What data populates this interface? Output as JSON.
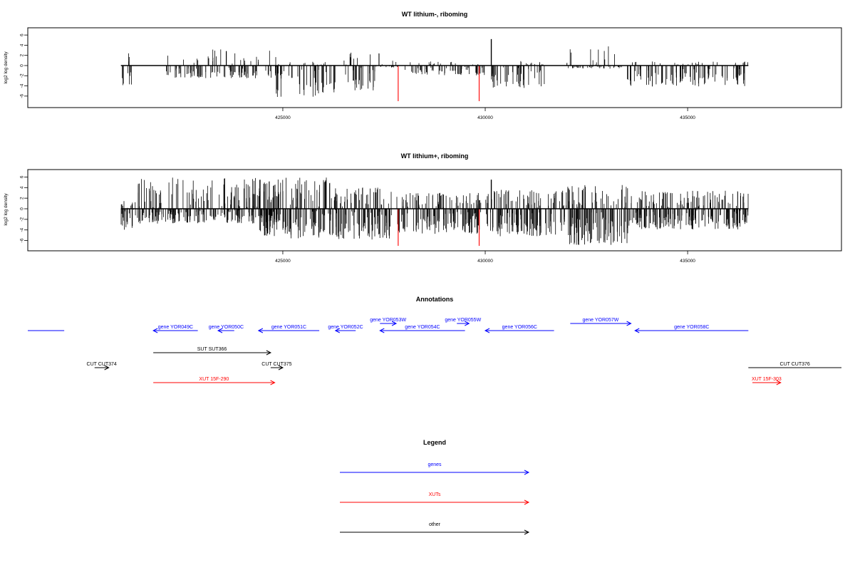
{
  "colors": {
    "genes": "#0000ff",
    "xuts": "#ff0000",
    "other": "#000000",
    "highlight": "#ff0000"
  },
  "chart_data": [
    {
      "type": "bar",
      "title": "WT lithium-, riboming",
      "ylabel": "log2 log density",
      "xlim": [
        418700,
        438800
      ],
      "ylim": [
        -7.5,
        7
      ],
      "x_ticks": [
        425000,
        430000,
        435000
      ],
      "x_tick_labels": [
        "425000",
        "430000",
        "435000"
      ],
      "y_ticks": [
        6,
        4,
        2,
        0,
        -2,
        -4,
        -6
      ],
      "y_tick_labels": [
        "6",
        "4",
        "2",
        "0",
        "-2",
        "-4",
        "-6"
      ],
      "baseline": {
        "x_start": 421000,
        "x_end": 436500
      },
      "highlight_bars": [
        {
          "x": 427850,
          "value": -7.0
        },
        {
          "x": 429850,
          "value": -7.0
        }
      ],
      "density_regions": [
        {
          "x_start": 421000,
          "x_end": 421300,
          "max": 2.4,
          "min": -4.2
        },
        {
          "x_start": 422100,
          "x_end": 424900,
          "max": 3.3,
          "min": -2.5
        },
        {
          "x_start": 424800,
          "x_end": 426300,
          "max": 0.8,
          "min": -6.2
        },
        {
          "x_start": 426500,
          "x_end": 427300,
          "max": 3.2,
          "min": -5.0
        },
        {
          "x_start": 427300,
          "x_end": 427850,
          "max": 2.8,
          "min": -0.4
        },
        {
          "x_start": 428000,
          "x_end": 430000,
          "max": 0.8,
          "min": -1.9
        },
        {
          "x_start": 430150,
          "x_end": 431500,
          "max": 0.9,
          "min": -4.6
        },
        {
          "x_start": 432000,
          "x_end": 433400,
          "max": 4.2,
          "min": -0.6
        },
        {
          "x_start": 433500,
          "x_end": 436500,
          "max": 0.8,
          "min": -4.2
        }
      ],
      "spikes": [
        {
          "x": 430150,
          "value": 5.2
        }
      ]
    },
    {
      "type": "bar",
      "title": "WT lithium+, riboming",
      "ylabel": "log2 log density",
      "xlim": [
        418700,
        438800
      ],
      "ylim": [
        -7.5,
        7
      ],
      "x_ticks": [
        425000,
        430000,
        435000
      ],
      "x_tick_labels": [
        "425000",
        "430000",
        "435000"
      ],
      "y_ticks": [
        6,
        4,
        2,
        0,
        -2,
        -4,
        -6
      ],
      "y_tick_labels": [
        "6",
        "4",
        "2",
        "0",
        "-2",
        "-4",
        "-6"
      ],
      "baseline": {
        "x_start": 421000,
        "x_end": 436500
      },
      "highlight_bars": [
        {
          "x": 427850,
          "value": -7.0
        },
        {
          "x": 429850,
          "value": -7.0
        }
      ],
      "density_regions": [
        {
          "x_start": 421000,
          "x_end": 421300,
          "max": 1.5,
          "min": -4.2
        },
        {
          "x_start": 421300,
          "x_end": 424900,
          "max": 5.9,
          "min": -2.8
        },
        {
          "x_start": 424400,
          "x_end": 426200,
          "max": 6.2,
          "min": -5.6
        },
        {
          "x_start": 426200,
          "x_end": 427700,
          "max": 4.0,
          "min": -5.8
        },
        {
          "x_start": 427800,
          "x_end": 429900,
          "max": 3.0,
          "min": -4.8
        },
        {
          "x_start": 430000,
          "x_end": 432000,
          "max": 3.6,
          "min": -5.2
        },
        {
          "x_start": 432000,
          "x_end": 433600,
          "max": 4.5,
          "min": -7.0
        },
        {
          "x_start": 433600,
          "x_end": 436500,
          "max": 3.4,
          "min": -3.9
        }
      ],
      "spikes": [
        {
          "x": 430150,
          "value": 5.5
        }
      ]
    }
  ],
  "annotations": {
    "title": "Annotations",
    "xlim": [
      418700,
      438800
    ],
    "features": [
      {
        "label": "",
        "kind": "gene",
        "x_start": 418700,
        "x_end": 419600,
        "row": 1,
        "direction": "none"
      },
      {
        "label": "gene YOR049C",
        "kind": "gene",
        "x_start": 421800,
        "x_end": 422900,
        "row": 1,
        "direction": "left"
      },
      {
        "label": "gene YOR050C",
        "kind": "gene",
        "x_start": 423400,
        "x_end": 423800,
        "row": 1,
        "direction": "left"
      },
      {
        "label": "gene YOR051C",
        "kind": "gene",
        "x_start": 424400,
        "x_end": 425900,
        "row": 1,
        "direction": "left"
      },
      {
        "label": "gene YOR052C",
        "kind": "gene",
        "x_start": 426300,
        "x_end": 426800,
        "row": 1,
        "direction": "left"
      },
      {
        "label": "gene YOR053W",
        "kind": "gene",
        "x_start": 427400,
        "x_end": 427800,
        "row": 0,
        "direction": "right"
      },
      {
        "label": "gene YOR054C",
        "kind": "gene",
        "x_start": 427400,
        "x_end": 429500,
        "row": 1,
        "direction": "left"
      },
      {
        "label": "gene YOR055W",
        "kind": "gene",
        "x_start": 429300,
        "x_end": 429600,
        "row": 0,
        "direction": "right"
      },
      {
        "label": "gene YOR056C",
        "kind": "gene",
        "x_start": 430000,
        "x_end": 431700,
        "row": 1,
        "direction": "left"
      },
      {
        "label": "gene YOR057W",
        "kind": "gene",
        "x_start": 432100,
        "x_end": 433600,
        "row": 0,
        "direction": "right"
      },
      {
        "label": "gene YOR058C",
        "kind": "gene",
        "x_start": 433700,
        "x_end": 436500,
        "row": 1,
        "direction": "left"
      },
      {
        "label": "SUT SUT366",
        "kind": "other",
        "x_start": 421800,
        "x_end": 424700,
        "row": 2,
        "direction": "right"
      },
      {
        "label": "CUT CUT374",
        "kind": "other",
        "x_start": 420350,
        "x_end": 420700,
        "row": 3,
        "direction": "right"
      },
      {
        "label": "CUT CUT375",
        "kind": "other",
        "x_start": 424700,
        "x_end": 425000,
        "row": 3,
        "direction": "right"
      },
      {
        "label": "CUT CUT376",
        "kind": "other",
        "x_start": 436500,
        "x_end": 438800,
        "row": 3,
        "direction": "none"
      },
      {
        "label": "XUT 15F-290",
        "kind": "xut",
        "x_start": 421800,
        "x_end": 424800,
        "row": 4,
        "direction": "right"
      },
      {
        "label": "XUT 15F-303",
        "kind": "xut",
        "x_start": 436600,
        "x_end": 437300,
        "row": 4,
        "direction": "right"
      }
    ]
  },
  "legend": {
    "title": "Legend",
    "items": [
      {
        "label": "genes",
        "kind": "gene"
      },
      {
        "label": "XUTs",
        "kind": "xut"
      },
      {
        "label": "other",
        "kind": "other"
      }
    ]
  }
}
